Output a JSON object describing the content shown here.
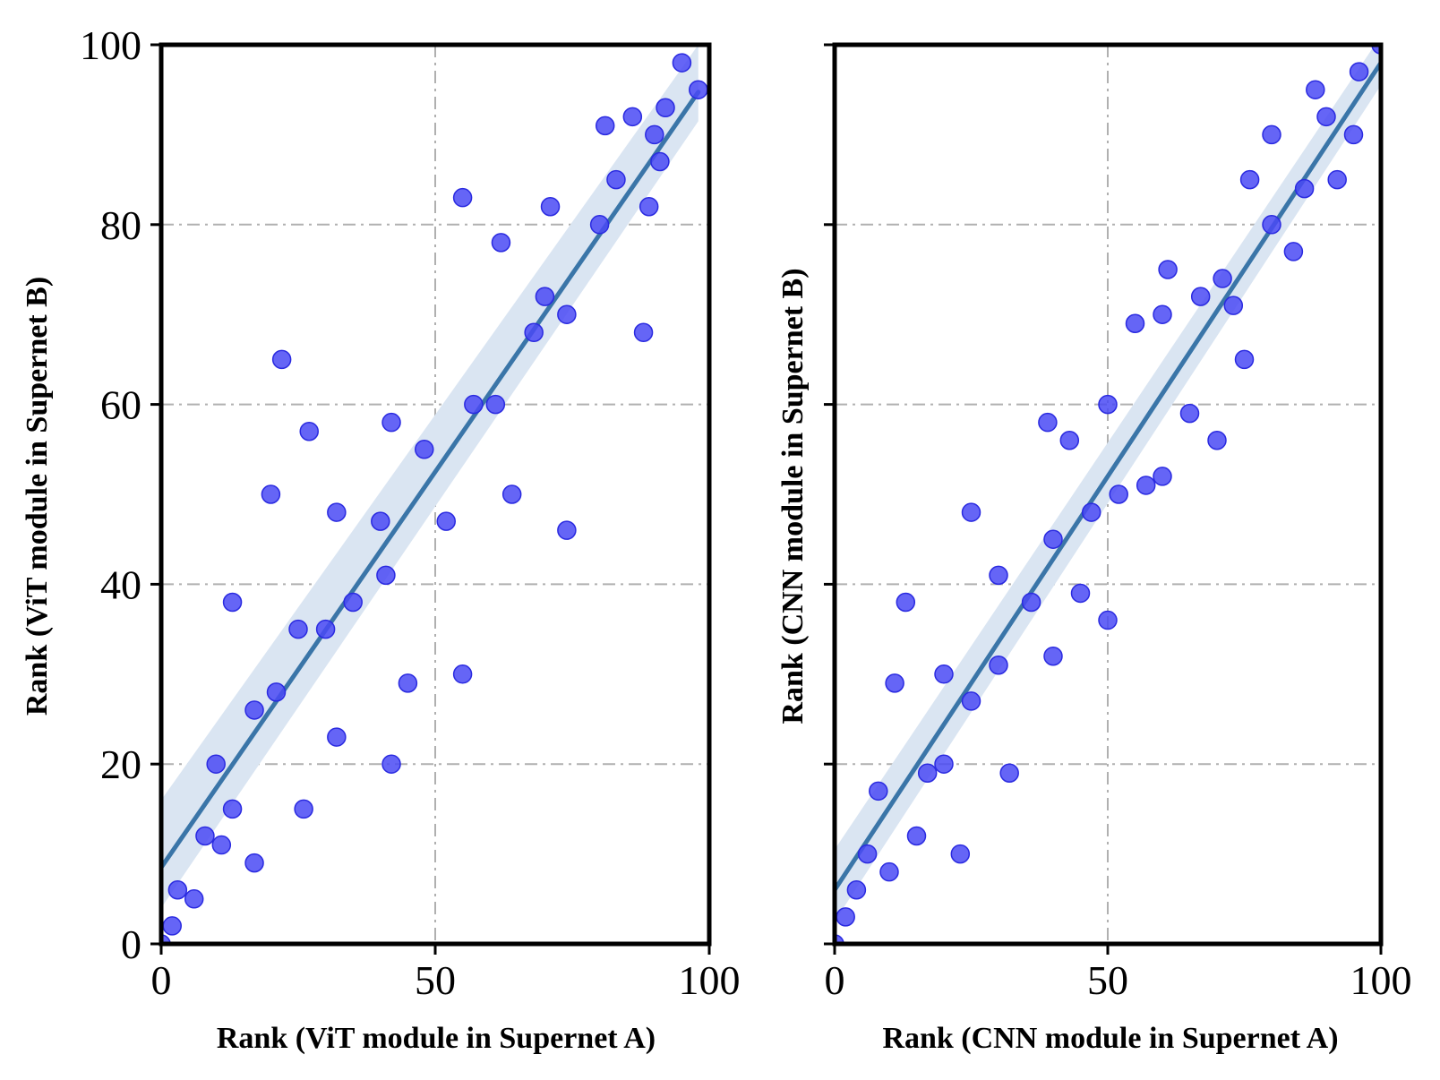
{
  "chart_data": [
    {
      "type": "scatter",
      "xlabel": "Rank (ViT module in Supernet A)",
      "ylabel": "Rank (ViT module in Supernet B)",
      "xlim": [
        0,
        100
      ],
      "ylim": [
        0,
        100
      ],
      "xticks": [
        "0",
        "50",
        "100"
      ],
      "yticks": [
        "0",
        "20",
        "40",
        "60",
        "80",
        "100"
      ],
      "grid": true,
      "colors": {
        "points": "#4a4af5",
        "fit": "#3a75a8",
        "band": "#dae5f2"
      },
      "points": [
        [
          0,
          0
        ],
        [
          2,
          2
        ],
        [
          3,
          6
        ],
        [
          6,
          5
        ],
        [
          8,
          12
        ],
        [
          10,
          20
        ],
        [
          11,
          11
        ],
        [
          13,
          15
        ],
        [
          13,
          38
        ],
        [
          17,
          26
        ],
        [
          17,
          9
        ],
        [
          20,
          50
        ],
        [
          21,
          28
        ],
        [
          22,
          65
        ],
        [
          25,
          35
        ],
        [
          26,
          15
        ],
        [
          27,
          57
        ],
        [
          30,
          35
        ],
        [
          32,
          48
        ],
        [
          32,
          23
        ],
        [
          35,
          38
        ],
        [
          40,
          47
        ],
        [
          41,
          41
        ],
        [
          42,
          58
        ],
        [
          42,
          20
        ],
        [
          45,
          29
        ],
        [
          48,
          55
        ],
        [
          52,
          47
        ],
        [
          55,
          83
        ],
        [
          55,
          30
        ],
        [
          57,
          60
        ],
        [
          61,
          60
        ],
        [
          62,
          78
        ],
        [
          64,
          50
        ],
        [
          68,
          68
        ],
        [
          70,
          72
        ],
        [
          71,
          82
        ],
        [
          74,
          70
        ],
        [
          74,
          46
        ],
        [
          80,
          80
        ],
        [
          81,
          91
        ],
        [
          83,
          85
        ],
        [
          86,
          92
        ],
        [
          88,
          68
        ],
        [
          89,
          82
        ],
        [
          90,
          90
        ],
        [
          91,
          87
        ],
        [
          92,
          93
        ],
        [
          95,
          98
        ],
        [
          98,
          95
        ]
      ],
      "fit": {
        "intercept": 8.5,
        "slope": 0.88,
        "x_range": [
          0,
          98
        ]
      },
      "ci_band": {
        "lower": [
          4.0,
          91.5
        ],
        "upper": [
          16.0,
          100.0
        ],
        "x_range": [
          0,
          98
        ]
      }
    },
    {
      "type": "scatter",
      "xlabel": "Rank (CNN module in Supernet A)",
      "ylabel": "Rank (CNN module in Supernet B)",
      "xlim": [
        0,
        100
      ],
      "ylim": [
        0,
        100
      ],
      "xticks": [
        "0",
        "50",
        "100"
      ],
      "yticks": [
        "0",
        "20",
        "40",
        "60",
        "80",
        "100"
      ],
      "grid": true,
      "colors": {
        "points": "#4a4af5",
        "fit": "#3a75a8",
        "band": "#dae5f2"
      },
      "points": [
        [
          0,
          0
        ],
        [
          2,
          3
        ],
        [
          4,
          6
        ],
        [
          6,
          10
        ],
        [
          8,
          17
        ],
        [
          10,
          8
        ],
        [
          11,
          29
        ],
        [
          13,
          38
        ],
        [
          15,
          12
        ],
        [
          17,
          19
        ],
        [
          20,
          20
        ],
        [
          20,
          30
        ],
        [
          23,
          10
        ],
        [
          25,
          27
        ],
        [
          25,
          48
        ],
        [
          30,
          41
        ],
        [
          30,
          31
        ],
        [
          32,
          19
        ],
        [
          36,
          38
        ],
        [
          39,
          58
        ],
        [
          40,
          45
        ],
        [
          40,
          32
        ],
        [
          43,
          56
        ],
        [
          45,
          39
        ],
        [
          47,
          48
        ],
        [
          50,
          60
        ],
        [
          50,
          36
        ],
        [
          52,
          50
        ],
        [
          55,
          69
        ],
        [
          57,
          51
        ],
        [
          60,
          70
        ],
        [
          60,
          52
        ],
        [
          61,
          75
        ],
        [
          65,
          59
        ],
        [
          67,
          72
        ],
        [
          70,
          56
        ],
        [
          71,
          74
        ],
        [
          73,
          71
        ],
        [
          75,
          65
        ],
        [
          76,
          85
        ],
        [
          80,
          90
        ],
        [
          80,
          80
        ],
        [
          84,
          77
        ],
        [
          86,
          84
        ],
        [
          88,
          95
        ],
        [
          90,
          92
        ],
        [
          92,
          85
        ],
        [
          95,
          90
        ],
        [
          96,
          97
        ],
        [
          100,
          100
        ]
      ],
      "fit": {
        "intercept": 6.0,
        "slope": 0.92,
        "x_range": [
          0,
          100
        ]
      },
      "ci_band": {
        "lower": [
          2.5,
          95.5
        ],
        "upper": [
          10.5,
          101.0
        ],
        "x_range": [
          0,
          100
        ]
      }
    }
  ]
}
